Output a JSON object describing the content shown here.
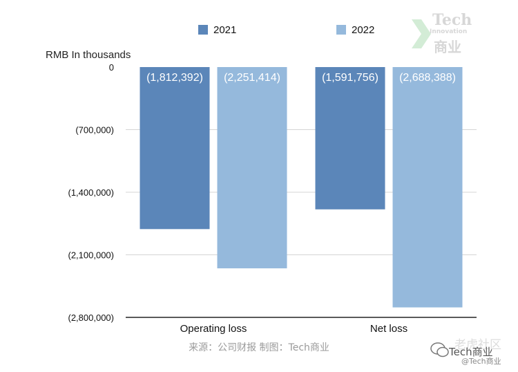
{
  "chart_data": {
    "type": "bar",
    "categories": [
      "Operating loss",
      "Net loss"
    ],
    "series": [
      {
        "name": "2021",
        "color": "#5b86b9",
        "values": [
          -1812392,
          -1591756
        ],
        "labels": [
          "(1,812,392)",
          "(1,591,756)"
        ]
      },
      {
        "name": "2022",
        "color": "#95b9dc",
        "values": [
          -2251414,
          -2688388
        ],
        "labels": [
          "(2,251,414)",
          "(2,688,388)"
        ]
      }
    ],
    "ylabel": "RMB In thousands",
    "ylim": [
      -2800000,
      0
    ],
    "yticks": [
      0,
      -700000,
      -1400000,
      -2100000,
      -2800000
    ],
    "ytick_labels": [
      "0",
      "(700,000)",
      "(1,400,000)",
      "(2,100,000)",
      "(2,800,000)"
    ],
    "grid": true,
    "legend_position": "top"
  },
  "source": "来源：公司财报 制图：Tech商业",
  "logo": {
    "line1": "Tech",
    "line2": "Innovation",
    "line3": "商业"
  },
  "watermark": {
    "line1": "老虎社区",
    "line2": "Tech商业",
    "line3": "@Tech商业"
  }
}
